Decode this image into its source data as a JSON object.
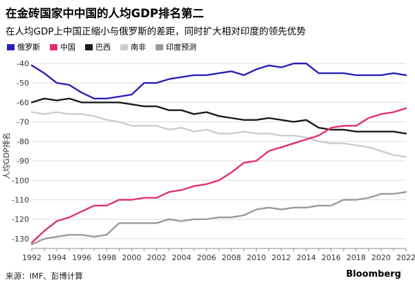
{
  "header": {
    "title": "在金砖国家中中国的人均GDP排名第二",
    "subtitle": "在人均GDP上中国正缩小与俄罗斯的差距，同时扩大相对印度的领先优势"
  },
  "footer": {
    "source": "来源：IMF、彭博计算",
    "brand": "Bloomberg"
  },
  "chart_data": {
    "type": "line",
    "title": "在金砖国家中中国的人均GDP排名第二",
    "subtitle": "在人均GDP上中国正缩小与俄罗斯的差距，同时扩大相对印度的领先优势",
    "xlabel": "",
    "ylabel": "人均GDP排名",
    "xlim": [
      1992,
      2022
    ],
    "ylim": [
      -135,
      -40
    ],
    "x_ticks": [
      1992,
      1994,
      1996,
      1998,
      2000,
      2002,
      2004,
      2006,
      2008,
      2010,
      2012,
      2014,
      2016,
      2018,
      2020,
      2022
    ],
    "y_ticks": [
      -40,
      -50,
      -60,
      -70,
      -80,
      -90,
      -100,
      -110,
      -120,
      -130
    ],
    "grid": true,
    "legend_position": "top-left",
    "x": [
      1992,
      1993,
      1994,
      1995,
      1996,
      1997,
      1998,
      1999,
      2000,
      2001,
      2002,
      2003,
      2004,
      2005,
      2006,
      2007,
      2008,
      2009,
      2010,
      2011,
      2012,
      2013,
      2014,
      2015,
      2016,
      2017,
      2018,
      2019,
      2020,
      2021,
      2022
    ],
    "series": [
      {
        "name": "俄罗斯",
        "color": "#2a1fb5",
        "dashed": false,
        "values": [
          -41,
          -45,
          -50,
          -51,
          -55,
          -58,
          -58,
          -57,
          -56,
          -50,
          -50,
          -48,
          -47,
          -46,
          -46,
          -45,
          -44,
          -46,
          -43,
          -41,
          -42,
          -40,
          -40,
          -45,
          -45,
          -45,
          -46,
          -46,
          -46,
          -45,
          -46
        ]
      },
      {
        "name": "中国",
        "color": "#e0306e",
        "dashed": false,
        "values": [
          -132,
          -126,
          -121,
          -119,
          -116,
          -113,
          -113,
          -110,
          -110,
          -109,
          -109,
          -106,
          -105,
          -103,
          -102,
          -100,
          -96,
          -91,
          -90,
          -85,
          -83,
          -81,
          -79,
          -77,
          -73,
          -72,
          -72,
          -68,
          -66,
          -65,
          -63
        ]
      },
      {
        "name": "巴西",
        "color": "#1a1a1a",
        "dashed": false,
        "values": [
          -60,
          -58,
          -59,
          -58,
          -60,
          -60,
          -60,
          -60,
          -61,
          -62,
          -62,
          -64,
          -64,
          -66,
          -65,
          -67,
          -68,
          -69,
          -69,
          -68,
          -69,
          -70,
          -69,
          -73,
          -74,
          -74,
          -75,
          -75,
          -75,
          -75,
          -76
        ]
      },
      {
        "name": "南非",
        "color": "#cccccc",
        "dashed": false,
        "values": [
          -65,
          -66,
          -65,
          -66,
          -66,
          -67,
          -69,
          -70,
          -72,
          -72,
          -72,
          -74,
          -73,
          -75,
          -74,
          -76,
          -76,
          -75,
          -76,
          -76,
          -77,
          -77,
          -78,
          -80,
          -81,
          -81,
          -82,
          -83,
          -85,
          -87,
          -88
        ]
      },
      {
        "name": "印度预测",
        "color": "#9a9a9a",
        "dashed": false,
        "values": [
          -133,
          -130,
          -129,
          -128,
          -128,
          -129,
          -128,
          -122,
          -122,
          -122,
          -122,
          -120,
          -121,
          -120,
          -120,
          -119,
          -119,
          -118,
          -115,
          -114,
          -115,
          -114,
          -114,
          -113,
          -113,
          -110,
          -110,
          -109,
          -107,
          -107,
          -106
        ]
      }
    ]
  }
}
